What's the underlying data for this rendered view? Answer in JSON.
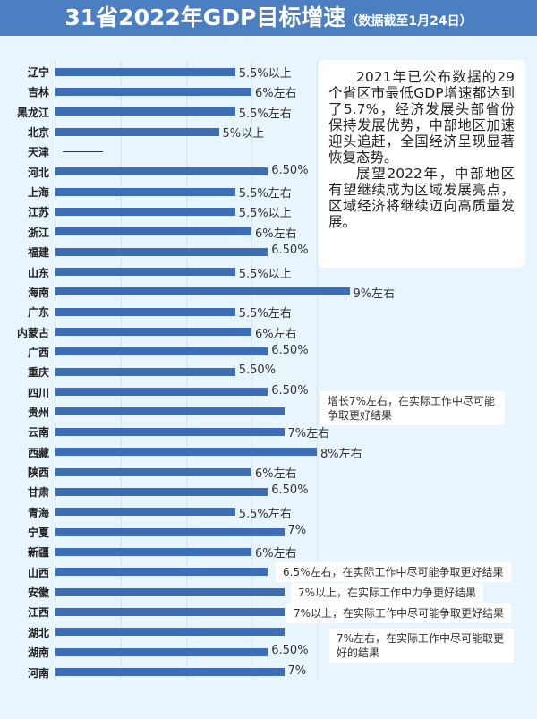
{
  "title": {
    "main": "31省2022年GDP目标增速",
    "sub": "（数据截至1月24日）"
  },
  "colors": {
    "bar": "#3d6db5",
    "title_bg": "#4b7fc1",
    "background": "#e9f5fc"
  },
  "note": {
    "paragraphs": [
      "2021年已公布数据的29个省区市最低GDP增速都达到了5.7%，经济发展头部省份保持发展优势，中部地区加速迎头追赶，全国经济呈现显著恢复态势。",
      "展望2022年，中部地区有望继续成为区域发展亮点，区域经济将继续迈向高质量发展。"
    ]
  },
  "chart_data": {
    "type": "bar",
    "orientation": "horizontal",
    "xlim": [
      0,
      9.5
    ],
    "grid": true,
    "categories": [
      "辽宁",
      "吉林",
      "黑龙江",
      "北京",
      "天津",
      "河北",
      "上海",
      "江苏",
      "浙江",
      "福建",
      "山东",
      "海南",
      "广东",
      "内蒙古",
      "广西",
      "重庆",
      "四川",
      "贵州",
      "云南",
      "西藏",
      "陕西",
      "甘肃",
      "青海",
      "宁夏",
      "新疆",
      "山西",
      "安徽",
      "江西",
      "湖北",
      "湖南",
      "河南"
    ],
    "values": [
      5.5,
      6,
      5.5,
      5,
      null,
      6.5,
      5.5,
      5.5,
      6,
      6.5,
      5.5,
      9,
      5.5,
      6,
      6.5,
      5.5,
      6.5,
      7,
      7,
      8,
      6,
      6.5,
      5.5,
      7,
      6,
      6.5,
      7,
      7,
      7,
      6.5,
      7
    ],
    "labels": [
      "5.5%以上",
      "6%左右",
      "5.5%左右",
      "5%以上",
      "——",
      "6.50%",
      "5.5%左右",
      "5.5%以上",
      "6%左右",
      "6.50%",
      "5.5%以上",
      "9%左右",
      "5.5%左右",
      "6%左右",
      "6.50%",
      "5.50%",
      "6.50%",
      "增长7%左右，在实际工作中尽可能争取更好结果",
      "7%左右",
      "8%左右",
      "6%左右",
      "6.50%",
      "5.5%左右",
      "7%",
      "6%左右",
      "6.5%左右，在实际工作中尽可能争取更好结果",
      "7%以上，在实际工作中力争更好结果",
      "7%以上，在实际工作中尽可能争取更好结果",
      "7%左右，在实际工作中尽可能取更好的结果",
      "6.50%",
      "7%"
    ]
  }
}
